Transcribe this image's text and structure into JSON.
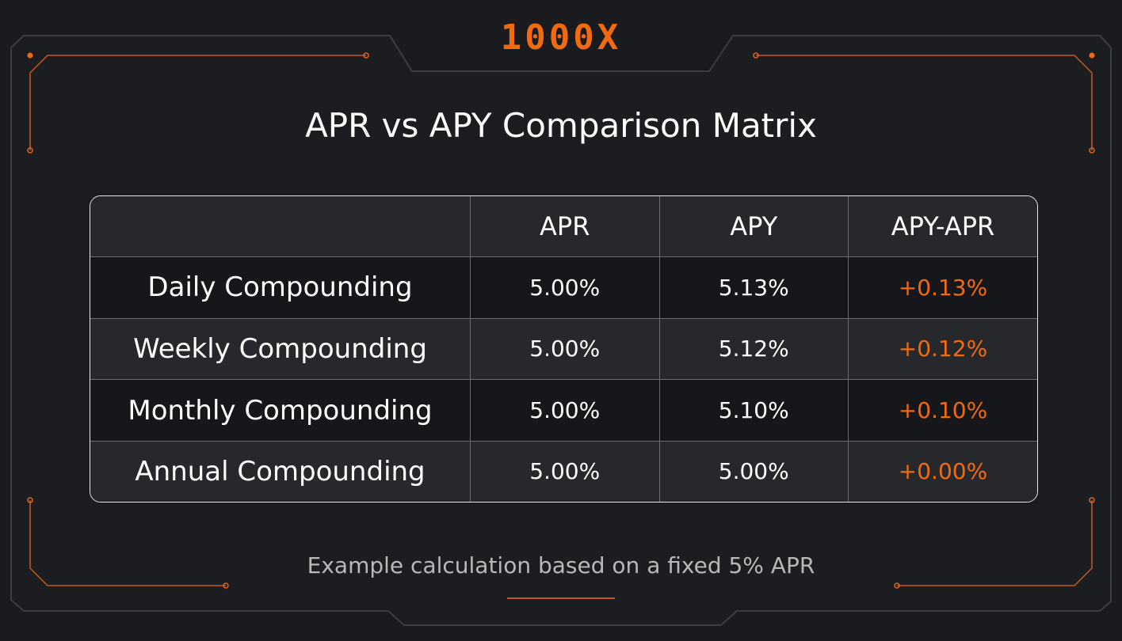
{
  "logo": "1000X",
  "title": "APR vs APY Comparison Matrix",
  "table": {
    "columns": [
      "APR",
      "APY",
      "APY-APR"
    ],
    "rows": [
      {
        "label": "Daily Compounding",
        "cells": [
          "5.00%",
          "5.13%",
          "+0.13%"
        ]
      },
      {
        "label": "Weekly Compounding",
        "cells": [
          "5.00%",
          "5.12%",
          "+0.12%"
        ]
      },
      {
        "label": "Monthly Compounding",
        "cells": [
          "5.00%",
          "5.10%",
          "+0.10%"
        ]
      },
      {
        "label": "Annual Compounding",
        "cells": [
          "5.00%",
          "5.00%",
          "+0.00%"
        ]
      }
    ]
  },
  "footnote": "Example calculation based on a fixed 5% APR"
}
